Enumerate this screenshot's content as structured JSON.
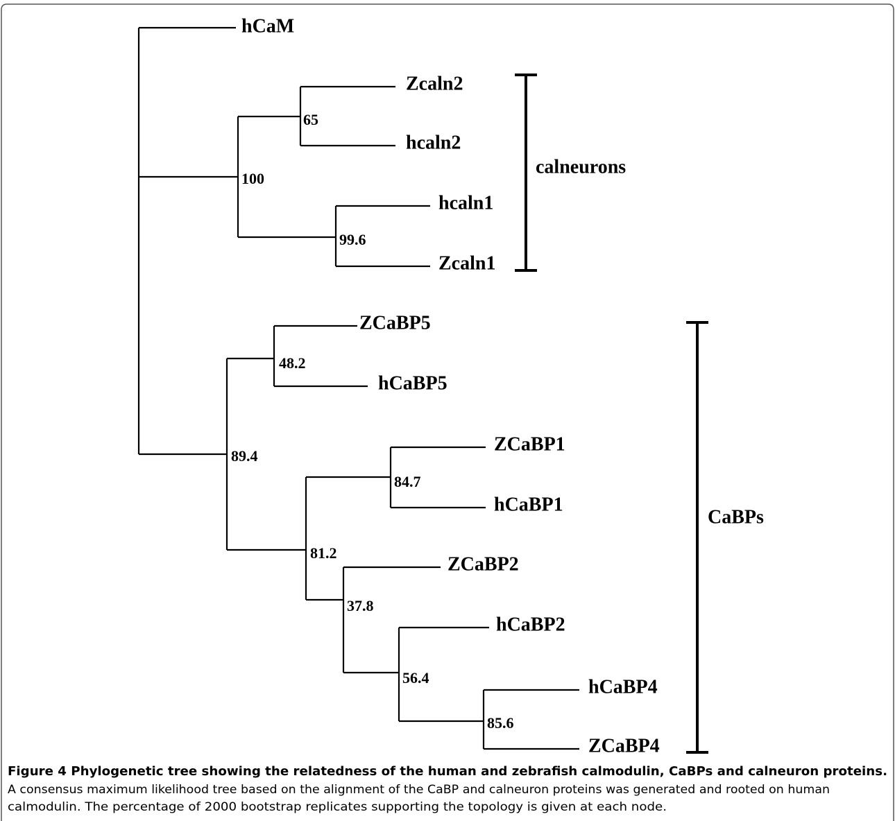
{
  "tree": {
    "root": {
      "label": "hCaM"
    },
    "leaves": [
      "Zcaln2",
      "hcaln2",
      "hcaln1",
      "Zcaln1",
      "ZCaBP5",
      "hCaBP5",
      "ZCaBP1",
      "hCaBP1",
      "ZCaBP2",
      "hCaBP2",
      "hCaBP4",
      "ZCaBP4"
    ],
    "support": [
      "65",
      "100",
      "99.6",
      "48.2",
      "89.4",
      "84.7",
      "81.2",
      "37.8",
      "56.4",
      "85.6"
    ],
    "clades": [
      "calneurons",
      "CaBPs"
    ]
  },
  "caption": {
    "title": "Figure 4 Phylogenetic tree showing the relatedness of the human and zebrafish calmodulin, CaBPs and calneuron proteins.",
    "lines": [
      "A consensus maximum likelihood tree based on the alignment of the CaBP and calneuron proteins was generated and rooted on human",
      "calmodulin. The percentage of 2000 bootstrap replicates supporting the topology is given at each node."
    ]
  }
}
